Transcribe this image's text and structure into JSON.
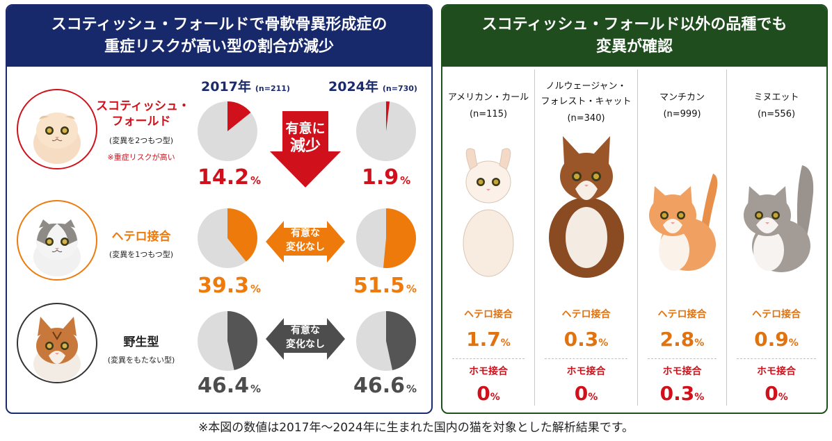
{
  "left": {
    "title_line1": "スコティッシュ・フォールドで骨軟骨異形成症の",
    "title_line2": "重症リスクが高い型の割合が減少",
    "year1_label": "2017年",
    "year1_n": "(n=211)",
    "year2_label": "2024年",
    "year2_n": "(n=730)",
    "groups": [
      {
        "name_line1": "スコティッシュ・",
        "name_line2": "フォールド",
        "sub": "(変異を2つもつ型)",
        "note": "※重症リスクが高い",
        "pct2017": "14.2",
        "pct2024": "1.9",
        "arrow_line1": "有意に",
        "arrow_line2": "減少"
      },
      {
        "name": "ヘテロ接合",
        "sub": "(変異を1つもつ型)",
        "pct2017": "39.3",
        "pct2024": "51.5",
        "arrow_line1": "有意な",
        "arrow_line2": "変化なし"
      },
      {
        "name": "野生型",
        "sub": "(変異をもたない型)",
        "pct2017": "46.4",
        "pct2024": "46.6",
        "arrow_line1": "有意な",
        "arrow_line2": "変化なし"
      }
    ],
    "pct_unit": "%"
  },
  "right": {
    "title_line1": "スコティッシュ・フォールド以外の品種でも",
    "title_line2": "変異が確認",
    "het_label": "ヘテロ接合",
    "hom_label": "ホモ接合",
    "pct_unit": "%",
    "breeds": [
      {
        "name_line1": "アメリカン・カール",
        "name_line2": "",
        "n": "(n=115)",
        "het": "1.7",
        "hom": "0"
      },
      {
        "name_line1": "ノルウェージャン・",
        "name_line2": "フォレスト・キャット",
        "n": "(n=340)",
        "het": "0.3",
        "hom": "0"
      },
      {
        "name_line1": "マンチカン",
        "name_line2": "",
        "n": "(n=999)",
        "het": "2.8",
        "hom": "0.3"
      },
      {
        "name_line1": "ミヌエット",
        "name_line2": "",
        "n": "(n=556)",
        "het": "0.9",
        "hom": "0"
      }
    ]
  },
  "footnote": "※本図の数値は2017年〜2024年に生まれた国内の猫を対象とした解析結果です。",
  "colors": {
    "left_header": "#17296b",
    "right_header": "#1f4d1e",
    "homozygous_red": "#d0111b",
    "heterozygous_orange": "#ee7a0c",
    "wildtype_gray": "#555555",
    "pie_background": "#dcdcdc",
    "arrow_gray": "#4d4d4d"
  },
  "icons": [
    "scottish-fold-cat-icon",
    "heterozygous-cat-icon",
    "wildtype-cat-icon",
    "american-curl-icon",
    "norwegian-forest-cat-icon",
    "munchkin-icon",
    "minuet-icon"
  ],
  "chart_data": [
    {
      "type": "pie",
      "title": "2017年 (n=211)",
      "categories": [
        "スコティッシュ・フォールド",
        "ヘテロ接合",
        "野生型"
      ],
      "values": [
        14.2,
        39.3,
        46.4
      ]
    },
    {
      "type": "pie",
      "title": "2024年 (n=730)",
      "categories": [
        "スコティッシュ・フォールド",
        "ヘテロ接合",
        "野生型"
      ],
      "values": [
        1.9,
        51.5,
        46.6
      ]
    },
    {
      "type": "table",
      "categories": [
        "アメリカン・カール",
        "ノルウェージャン・フォレスト・キャット",
        "マンチカン",
        "ミヌエット"
      ],
      "series": [
        {
          "name": "ヘテロ接合",
          "values": [
            1.7,
            0.3,
            2.8,
            0.9
          ]
        },
        {
          "name": "ホモ接合",
          "values": [
            0,
            0,
            0.3,
            0
          ]
        }
      ]
    }
  ]
}
